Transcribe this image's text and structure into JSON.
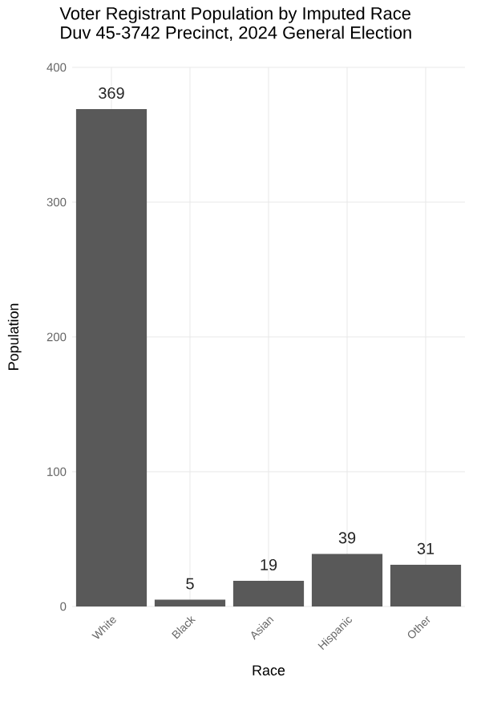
{
  "chart_data": {
    "type": "bar",
    "title": "Voter Registrant Population by Imputed Race",
    "subtitle": "Duv 45-3742 Precinct,  2024 General Election",
    "xlabel": "Race",
    "ylabel": "Population",
    "categories": [
      "White",
      "Black",
      "Asian",
      "Hispanic",
      "Other"
    ],
    "values": [
      369,
      5,
      19,
      39,
      31
    ],
    "color": "#595959",
    "ylim": [
      0,
      400
    ],
    "yticks": [
      0,
      100,
      200,
      300,
      400
    ],
    "grid": true,
    "data_labels": true
  }
}
